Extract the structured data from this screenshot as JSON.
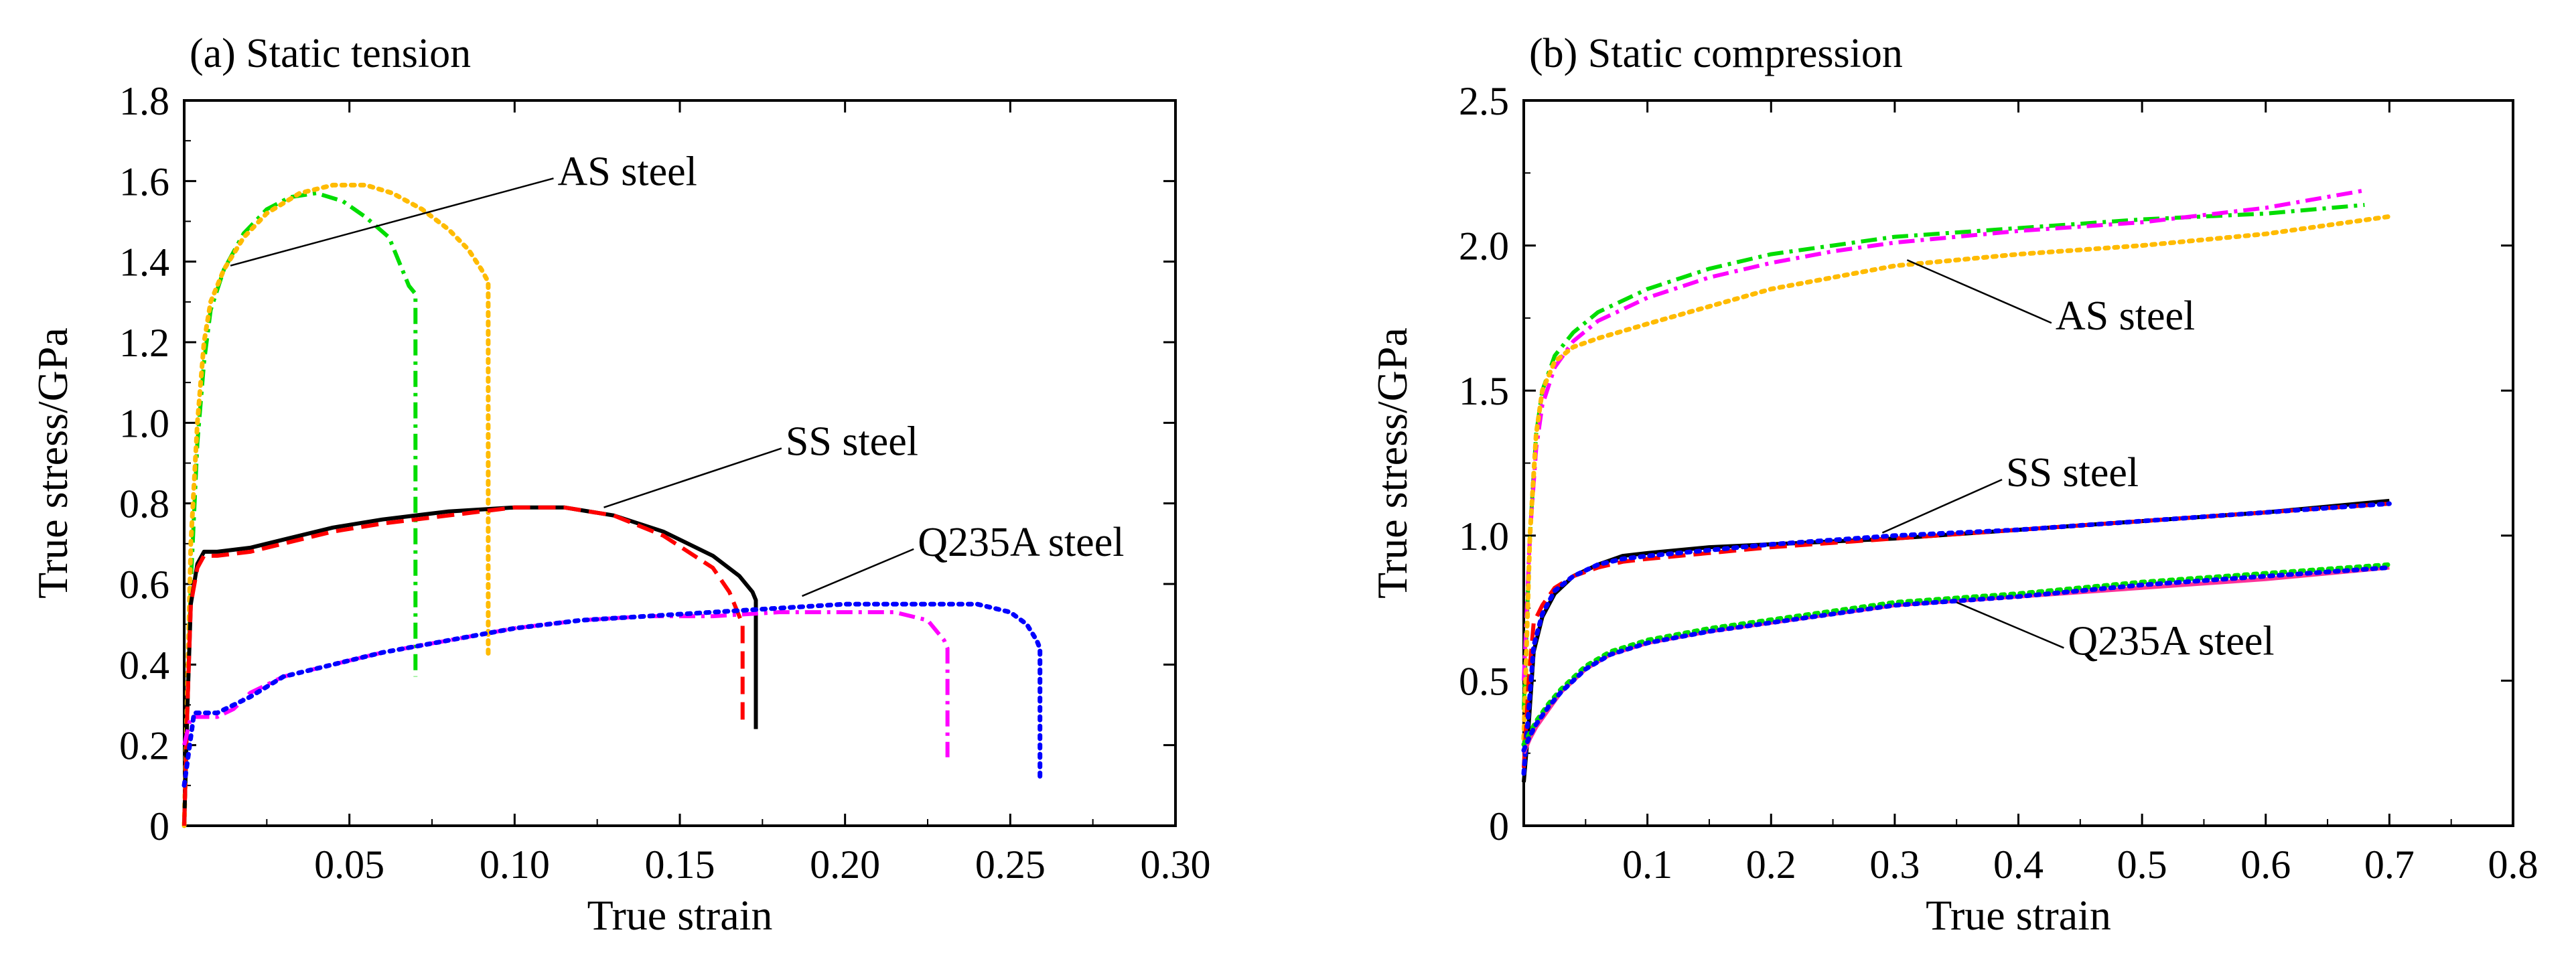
{
  "chart_data": [
    {
      "type": "line",
      "title": "(a) Static tension",
      "xlabel": "True strain",
      "ylabel": "True stress/GPa",
      "xlim": [
        0,
        0.3
      ],
      "ylim": [
        0,
        1.8
      ],
      "xticks": [
        0.05,
        0.1,
        0.15,
        0.2,
        0.25,
        0.3
      ],
      "xtick_labels": [
        "0.05",
        "0.10",
        "0.15",
        "0.20",
        "0.25",
        "0.30"
      ],
      "yticks": [
        0,
        0.2,
        0.4,
        0.6,
        0.8,
        1.0,
        1.2,
        1.4,
        1.6,
        1.8
      ],
      "ytick_labels": [
        "0",
        "0.2",
        "0.4",
        "0.6",
        "0.8",
        "1.0",
        "1.2",
        "1.4",
        "1.6",
        "1.8"
      ],
      "grid": false,
      "annotations": [
        {
          "text": "AS steel",
          "x": 0.113,
          "y": 1.59,
          "target": [
            0.014,
            1.39
          ]
        },
        {
          "text": "SS steel",
          "x": 0.182,
          "y": 0.92,
          "target": [
            0.127,
            0.79
          ]
        },
        {
          "text": "Q235A steel",
          "x": 0.222,
          "y": 0.67,
          "target": [
            0.187,
            0.57
          ]
        }
      ],
      "series": [
        {
          "color": "#00dd00",
          "style": "dashdot",
          "x": [
            0,
            0.002,
            0.004,
            0.006,
            0.008,
            0.012,
            0.018,
            0.025,
            0.032,
            0.04,
            0.048,
            0.055,
            0.062,
            0.066,
            0.068,
            0.07,
            0.07
          ],
          "y": [
            0,
            0.6,
            0.95,
            1.15,
            1.28,
            1.38,
            1.47,
            1.53,
            1.56,
            1.57,
            1.55,
            1.51,
            1.46,
            1.38,
            1.34,
            1.32,
            0.37
          ]
        },
        {
          "color": "#ffbb00",
          "style": "dotted",
          "x": [
            0,
            0.002,
            0.004,
            0.006,
            0.008,
            0.012,
            0.018,
            0.025,
            0.035,
            0.045,
            0.055,
            0.063,
            0.072,
            0.08,
            0.086,
            0.09,
            0.092,
            0.092
          ],
          "y": [
            0,
            0.7,
            1.0,
            1.2,
            1.3,
            1.38,
            1.46,
            1.52,
            1.57,
            1.59,
            1.59,
            1.57,
            1.53,
            1.48,
            1.43,
            1.38,
            1.35,
            0.42
          ]
        },
        {
          "color": "#000000",
          "style": "solid",
          "x": [
            0,
            0.001,
            0.002,
            0.004,
            0.006,
            0.01,
            0.02,
            0.03,
            0.045,
            0.06,
            0.08,
            0.1,
            0.115,
            0.13,
            0.145,
            0.16,
            0.168,
            0.172,
            0.173,
            0.173
          ],
          "y": [
            0,
            0.3,
            0.55,
            0.65,
            0.68,
            0.68,
            0.69,
            0.71,
            0.74,
            0.76,
            0.78,
            0.79,
            0.79,
            0.77,
            0.73,
            0.67,
            0.62,
            0.58,
            0.56,
            0.24
          ]
        },
        {
          "color": "#ff0000",
          "style": "dashed",
          "x": [
            0,
            0.001,
            0.002,
            0.004,
            0.006,
            0.01,
            0.02,
            0.03,
            0.045,
            0.06,
            0.08,
            0.1,
            0.115,
            0.13,
            0.145,
            0.16,
            0.165,
            0.169,
            0.169
          ],
          "y": [
            0,
            0.3,
            0.55,
            0.64,
            0.67,
            0.67,
            0.68,
            0.7,
            0.73,
            0.75,
            0.77,
            0.79,
            0.79,
            0.77,
            0.72,
            0.64,
            0.58,
            0.5,
            0.25
          ]
        },
        {
          "color": "#ff00ff",
          "style": "dashdot",
          "x": [
            0,
            0.002,
            0.004,
            0.01,
            0.015,
            0.02,
            0.03,
            0.045,
            0.06,
            0.08,
            0.1,
            0.12,
            0.14,
            0.16,
            0.18,
            0.2,
            0.215,
            0.225,
            0.23,
            0.231,
            0.231
          ],
          "y": [
            0.2,
            0.27,
            0.27,
            0.27,
            0.29,
            0.33,
            0.37,
            0.4,
            0.43,
            0.46,
            0.49,
            0.51,
            0.52,
            0.52,
            0.53,
            0.53,
            0.53,
            0.51,
            0.46,
            0.44,
            0.17
          ]
        },
        {
          "color": "#0000ff",
          "style": "dotted",
          "x": [
            0,
            0.003,
            0.01,
            0.02,
            0.03,
            0.045,
            0.06,
            0.08,
            0.1,
            0.12,
            0.14,
            0.16,
            0.18,
            0.2,
            0.22,
            0.24,
            0.25,
            0.255,
            0.258,
            0.259,
            0.259
          ],
          "y": [
            0.1,
            0.28,
            0.28,
            0.32,
            0.37,
            0.4,
            0.43,
            0.46,
            0.49,
            0.51,
            0.52,
            0.53,
            0.54,
            0.55,
            0.55,
            0.55,
            0.53,
            0.5,
            0.46,
            0.44,
            0.12
          ]
        }
      ]
    },
    {
      "type": "line",
      "title": "(b) Static compression",
      "xlabel": "True strain",
      "ylabel": "True stress/GPa",
      "xlim": [
        0,
        0.8
      ],
      "ylim": [
        0,
        2.5
      ],
      "xticks": [
        0.1,
        0.2,
        0.3,
        0.4,
        0.5,
        0.6,
        0.7,
        0.8
      ],
      "xtick_labels": [
        "0.1",
        "0.2",
        "0.3",
        "0.4",
        "0.5",
        "0.6",
        "0.7",
        "0.8"
      ],
      "yticks": [
        0,
        0.5,
        1.0,
        1.5,
        2.0,
        2.5
      ],
      "ytick_labels": [
        "0",
        "0.5",
        "1.0",
        "1.5",
        "2.0",
        "2.5"
      ],
      "grid": false,
      "annotations": [
        {
          "text": "AS steel",
          "x": 0.43,
          "y": 1.71,
          "target": [
            0.31,
            1.95
          ]
        },
        {
          "text": "SS steel",
          "x": 0.39,
          "y": 1.17,
          "target": [
            0.29,
            1.01
          ]
        },
        {
          "text": "Q235A steel",
          "x": 0.44,
          "y": 0.59,
          "target": [
            0.35,
            0.77
          ]
        }
      ],
      "series": [
        {
          "color": "#00dd00",
          "style": "dashdot",
          "x": [
            0,
            0.005,
            0.01,
            0.015,
            0.025,
            0.04,
            0.06,
            0.1,
            0.15,
            0.2,
            0.25,
            0.3,
            0.4,
            0.5,
            0.6,
            0.68
          ],
          "y": [
            0.4,
            1.0,
            1.35,
            1.5,
            1.62,
            1.7,
            1.77,
            1.85,
            1.92,
            1.97,
            2.0,
            2.03,
            2.06,
            2.09,
            2.11,
            2.14
          ]
        },
        {
          "color": "#ff00ff",
          "style": "dashdot",
          "x": [
            0,
            0.005,
            0.01,
            0.015,
            0.025,
            0.04,
            0.06,
            0.1,
            0.15,
            0.2,
            0.25,
            0.3,
            0.4,
            0.5,
            0.6,
            0.68
          ],
          "y": [
            0.5,
            1.0,
            1.3,
            1.45,
            1.58,
            1.67,
            1.74,
            1.82,
            1.89,
            1.94,
            1.98,
            2.01,
            2.05,
            2.08,
            2.13,
            2.19
          ]
        },
        {
          "color": "#ffbb00",
          "style": "dotted",
          "x": [
            0,
            0.005,
            0.01,
            0.015,
            0.025,
            0.04,
            0.06,
            0.1,
            0.15,
            0.2,
            0.25,
            0.3,
            0.4,
            0.5,
            0.6,
            0.7
          ],
          "y": [
            0.3,
            1.0,
            1.35,
            1.5,
            1.6,
            1.65,
            1.68,
            1.73,
            1.79,
            1.85,
            1.89,
            1.93,
            1.97,
            2.0,
            2.04,
            2.1
          ]
        },
        {
          "color": "#000000",
          "style": "solid",
          "x": [
            0,
            0.004,
            0.008,
            0.015,
            0.025,
            0.04,
            0.06,
            0.08,
            0.1,
            0.15,
            0.2,
            0.3,
            0.4,
            0.5,
            0.6,
            0.7
          ],
          "y": [
            0.15,
            0.35,
            0.6,
            0.72,
            0.8,
            0.86,
            0.9,
            0.93,
            0.94,
            0.96,
            0.97,
            0.99,
            1.02,
            1.05,
            1.08,
            1.12
          ]
        },
        {
          "color": "#ff0000",
          "style": "dashed",
          "x": [
            0,
            0.004,
            0.008,
            0.015,
            0.025,
            0.04,
            0.06,
            0.08,
            0.1,
            0.15,
            0.2,
            0.3,
            0.4,
            0.5,
            0.6,
            0.7
          ],
          "y": [
            0.2,
            0.5,
            0.7,
            0.76,
            0.82,
            0.86,
            0.89,
            0.91,
            0.92,
            0.94,
            0.96,
            0.99,
            1.02,
            1.05,
            1.08,
            1.11
          ]
        },
        {
          "color": "#0000ff",
          "style": "dotted",
          "x": [
            0,
            0.004,
            0.008,
            0.015,
            0.025,
            0.04,
            0.06,
            0.08,
            0.1,
            0.15,
            0.2,
            0.3,
            0.4,
            0.5,
            0.6,
            0.7
          ],
          "y": [
            0.18,
            0.4,
            0.62,
            0.73,
            0.81,
            0.86,
            0.9,
            0.92,
            0.93,
            0.95,
            0.97,
            1.0,
            1.02,
            1.05,
            1.08,
            1.11
          ]
        },
        {
          "color": "#ff3399",
          "style": "solid",
          "x": [
            0,
            0.005,
            0.01,
            0.02,
            0.03,
            0.05,
            0.07,
            0.1,
            0.15,
            0.2,
            0.25,
            0.3,
            0.4,
            0.5,
            0.6,
            0.7
          ],
          "y": [
            0.25,
            0.3,
            0.34,
            0.4,
            0.46,
            0.54,
            0.59,
            0.63,
            0.67,
            0.7,
            0.73,
            0.76,
            0.79,
            0.82,
            0.85,
            0.89
          ]
        },
        {
          "color": "#00dd00",
          "style": "dotted",
          "x": [
            0,
            0.005,
            0.01,
            0.02,
            0.03,
            0.05,
            0.07,
            0.1,
            0.15,
            0.2,
            0.25,
            0.3,
            0.4,
            0.5,
            0.6,
            0.7
          ],
          "y": [
            0.28,
            0.32,
            0.36,
            0.42,
            0.47,
            0.55,
            0.6,
            0.64,
            0.68,
            0.71,
            0.74,
            0.77,
            0.8,
            0.84,
            0.87,
            0.9
          ]
        },
        {
          "color": "#0000ff",
          "style": "dotted",
          "x": [
            0,
            0.005,
            0.01,
            0.02,
            0.03,
            0.05,
            0.07,
            0.1,
            0.15,
            0.2,
            0.25,
            0.3,
            0.4,
            0.5,
            0.6,
            0.7
          ],
          "y": [
            0.26,
            0.31,
            0.35,
            0.41,
            0.46,
            0.54,
            0.59,
            0.63,
            0.67,
            0.7,
            0.73,
            0.76,
            0.79,
            0.83,
            0.86,
            0.89
          ]
        }
      ]
    }
  ]
}
